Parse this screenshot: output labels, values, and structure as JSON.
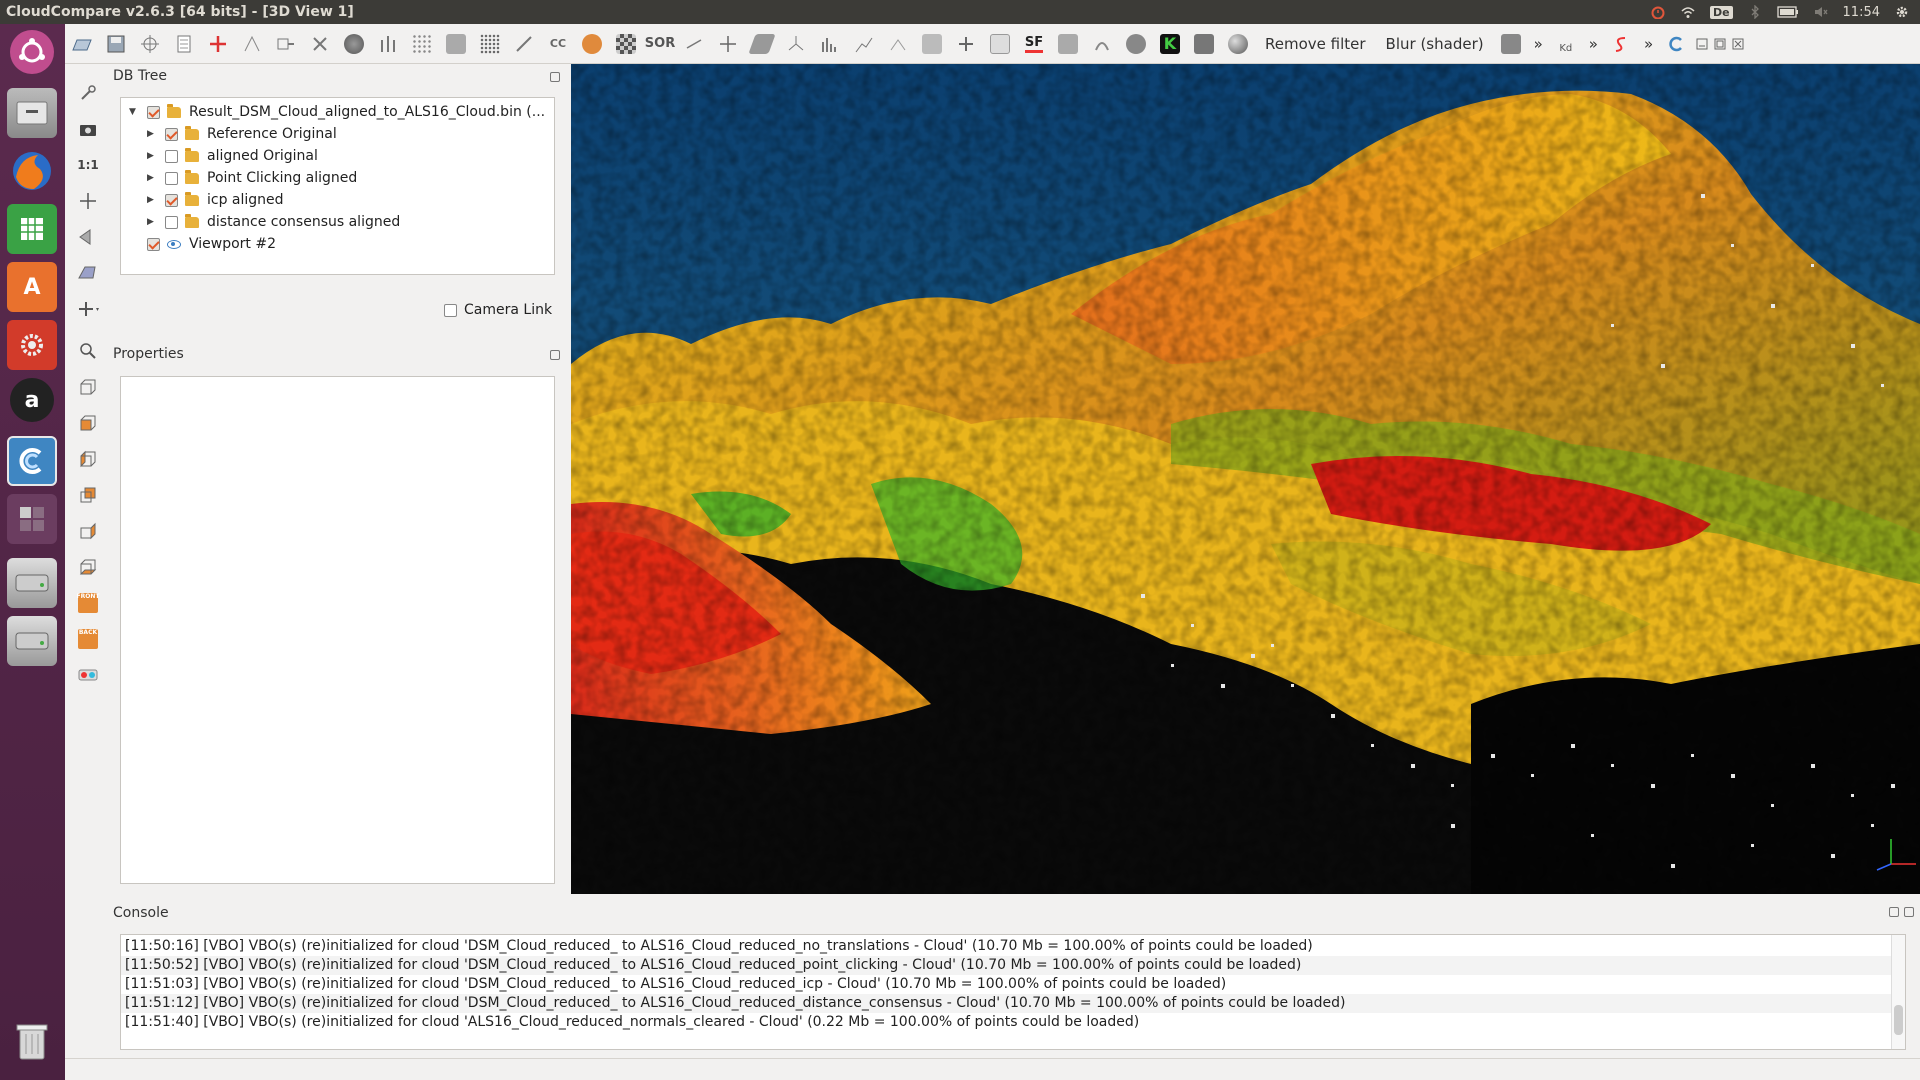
{
  "window": {
    "title": "CloudCompare v2.6.3 [64 bits] - [3D View 1]"
  },
  "tray": {
    "keyboard_layout": "De",
    "clock": "11:54"
  },
  "launcher": {
    "items": [
      "ubuntu-dash",
      "files",
      "firefox",
      "libreoffice-calc",
      "software-center",
      "system-settings",
      "amazon",
      "cloudcompare",
      "workspace-switcher",
      "disk-1",
      "disk-2",
      "trash"
    ]
  },
  "toolbar": {
    "remove_filter_label": "Remove filter",
    "blur_shader_label": "Blur (shader)",
    "sf_label": "SF",
    "sor_label": "SOR",
    "kd_label": "Kd",
    "overflow_label": "»"
  },
  "sidetools": {
    "scale_label": "1:1",
    "front_label": "FRONT",
    "back_label": "BACK"
  },
  "db_tree": {
    "title": "DB Tree",
    "root": {
      "label": "Result_DSM_Cloud_aligned_to_ALS16_Cloud.bin (...",
      "checked": true
    },
    "children": [
      {
        "label": "Reference Original",
        "checked": true
      },
      {
        "label": "aligned Original",
        "checked": false
      },
      {
        "label": "Point Clicking aligned",
        "checked": false
      },
      {
        "label": "icp aligned",
        "checked": true
      },
      {
        "label": "distance consensus aligned",
        "checked": false
      }
    ],
    "viewport": {
      "label": "Viewport #2",
      "checked": true
    },
    "camera_link_label": "Camera Link"
  },
  "properties": {
    "title": "Properties"
  },
  "console": {
    "title": "Console",
    "lines": [
      "[11:50:16] [VBO] VBO(s) (re)initialized for cloud 'DSM_Cloud_reduced_ to ALS16_Cloud_reduced_no_translations - Cloud' (10.70 Mb = 100.00% of points could be loaded)",
      "[11:50:52] [VBO] VBO(s) (re)initialized for cloud 'DSM_Cloud_reduced_ to ALS16_Cloud_reduced_point_clicking - Cloud' (10.70 Mb = 100.00% of points could be loaded)",
      "[11:51:03] [VBO] VBO(s) (re)initialized for cloud 'DSM_Cloud_reduced_ to ALS16_Cloud_reduced_icp - Cloud' (10.70 Mb = 100.00% of points could be loaded)",
      "[11:51:12] [VBO] VBO(s) (re)initialized for cloud 'DSM_Cloud_reduced_ to ALS16_Cloud_reduced_distance_consensus - Cloud' (10.70 Mb = 100.00% of points could be loaded)",
      "[11:51:40] [VBO] VBO(s) (re)initialized for cloud 'ALS16_Cloud_reduced_normals_cleared - Cloud' (0.22 Mb = 100.00% of points could be loaded)"
    ]
  },
  "colors": {
    "accent": "#e05a2a",
    "launcher_bg": "#4a2140",
    "titlebar_bg": "#3c3b37",
    "view_bg_top": "#0b3f6f",
    "view_bg_bottom": "#02070d"
  }
}
